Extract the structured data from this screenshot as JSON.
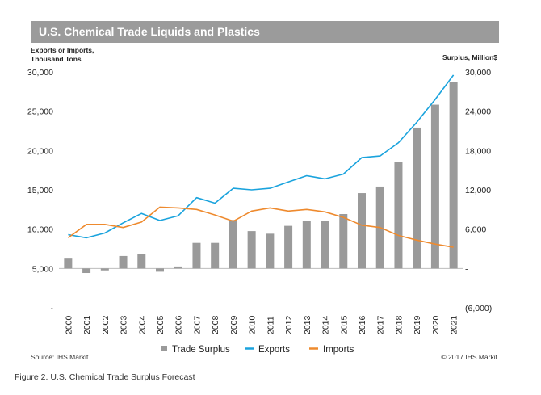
{
  "title": "U.S. Chemical Trade Liquids and Plastics",
  "left_axis_title": [
    "Exports or Imports,",
    "Thousand Tons"
  ],
  "right_axis_title": "Surplus, Million$",
  "source": "Source: IHS Markit",
  "copyright": "© 2017 IHS Markit",
  "caption": "Figure 2. U.S. Chemical Trade Surplus Forecast",
  "chart_data": {
    "type": "bar+line",
    "categories": [
      "2000",
      "2001",
      "2002",
      "2003",
      "2004",
      "2005",
      "2006",
      "2007",
      "2008",
      "2009",
      "2010",
      "2011",
      "2012",
      "2013",
      "2014",
      "2015",
      "2016",
      "2017",
      "2018",
      "2019",
      "2020",
      "2021"
    ],
    "left_axis": {
      "ylim": [
        0,
        30000
      ],
      "ticks": [
        "-",
        "5,000",
        "10,000",
        "15,000",
        "20,000",
        "25,000",
        "30,000"
      ],
      "tick_values": [
        0,
        5000,
        10000,
        15000,
        20000,
        25000,
        30000
      ]
    },
    "right_axis": {
      "ylim": [
        -6000,
        30000
      ],
      "ticks": [
        "(6,000)",
        "-",
        "6,000",
        "12,000",
        "18,000",
        "24,000",
        "30,000"
      ],
      "tick_values": [
        -6000,
        0,
        6000,
        12000,
        18000,
        24000,
        30000
      ]
    },
    "series": [
      {
        "name": "Trade Surplus",
        "type": "bar",
        "axis": "right",
        "color": "#9a9a9a",
        "values": [
          1500,
          -700,
          -300,
          1900,
          2200,
          -500,
          300,
          3900,
          3900,
          7400,
          5700,
          5300,
          6500,
          7200,
          7200,
          8300,
          11500,
          12500,
          16300,
          21500,
          25000,
          28500
        ]
      },
      {
        "name": "Exports",
        "type": "line",
        "axis": "left",
        "color": "#1aa3dd",
        "values": [
          9300,
          8900,
          9500,
          10800,
          12000,
          11100,
          11700,
          14000,
          13300,
          15200,
          15000,
          15200,
          16000,
          16800,
          16400,
          17000,
          19100,
          19300,
          21000,
          23600,
          26500,
          29600
        ]
      },
      {
        "name": "Imports",
        "type": "line",
        "axis": "left",
        "color": "#ee8a2e",
        "values": [
          8900,
          10600,
          10600,
          10200,
          10900,
          12800,
          12700,
          12500,
          11800,
          11000,
          12300,
          12700,
          12300,
          12500,
          12200,
          11500,
          10500,
          10200,
          9200,
          8600,
          8100,
          7700
        ]
      }
    ]
  }
}
